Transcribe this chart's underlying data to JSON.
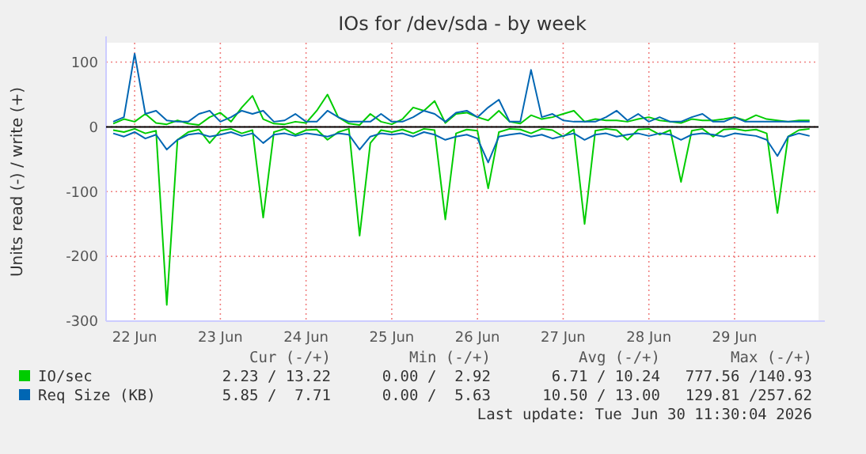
{
  "chart_data": {
    "type": "line",
    "title": "IOs for /dev/sda - by week",
    "ylabel": "Units read (-) / write (+)",
    "x": [
      "2026-06-22T06:00",
      "2026-06-22T09:00",
      "2026-06-22T12:00",
      "2026-06-22T15:00",
      "2026-06-22T18:00",
      "2026-06-22T21:00",
      "2026-06-23T00:00",
      "2026-06-23T03:00",
      "2026-06-23T06:00",
      "2026-06-23T09:00",
      "2026-06-23T12:00",
      "2026-06-23T15:00",
      "2026-06-23T18:00",
      "2026-06-23T21:00",
      "2026-06-24T00:00",
      "2026-06-24T03:00",
      "2026-06-24T06:00",
      "2026-06-24T09:00",
      "2026-06-24T12:00",
      "2026-06-24T15:00",
      "2026-06-24T18:00",
      "2026-06-24T21:00",
      "2026-06-25T00:00",
      "2026-06-25T03:00",
      "2026-06-25T06:00",
      "2026-06-25T09:00",
      "2026-06-25T12:00",
      "2026-06-25T15:00",
      "2026-06-25T18:00",
      "2026-06-25T21:00",
      "2026-06-26T00:00",
      "2026-06-26T03:00",
      "2026-06-26T06:00",
      "2026-06-26T09:00",
      "2026-06-26T12:00",
      "2026-06-26T15:00",
      "2026-06-26T18:00",
      "2026-06-26T21:00",
      "2026-06-27T00:00",
      "2026-06-27T03:00",
      "2026-06-27T06:00",
      "2026-06-27T09:00",
      "2026-06-27T12:00",
      "2026-06-27T15:00",
      "2026-06-27T18:00",
      "2026-06-27T21:00",
      "2026-06-28T00:00",
      "2026-06-28T03:00",
      "2026-06-28T06:00",
      "2026-06-28T09:00",
      "2026-06-28T12:00",
      "2026-06-28T15:00",
      "2026-06-28T18:00",
      "2026-06-28T21:00",
      "2026-06-29T00:00",
      "2026-06-29T03:00",
      "2026-06-29T06:00",
      "2026-06-29T09:00",
      "2026-06-29T12:00",
      "2026-06-29T15:00",
      "2026-06-29T18:00",
      "2026-06-29T21:00",
      "2026-06-30T00:00",
      "2026-06-30T03:00",
      "2026-06-30T06:00",
      "2026-06-30T09:00"
    ],
    "series": [
      {
        "color": "#00cc00",
        "values": [
          -5,
          -8,
          -3,
          -10,
          -6,
          -275,
          -20,
          -8,
          -4,
          -25,
          -6,
          -3,
          -10,
          -5,
          -140,
          -8,
          -3,
          -12,
          -5,
          -4,
          -20,
          -8,
          -3,
          -168,
          -25,
          -5,
          -8,
          -4,
          -10,
          -3,
          -5,
          -143,
          -10,
          -4,
          -6,
          -95,
          -8,
          -3,
          -4,
          -10,
          -3,
          -5,
          -15,
          -4,
          -150,
          -6,
          -3,
          -5,
          -20,
          -4,
          -3,
          -12,
          -5,
          -85,
          -6,
          -3,
          -15,
          -4,
          -3,
          -6,
          -4,
          -10,
          -133,
          -15,
          -5,
          -3
        ]
      },
      {
        "color": "#0066b3",
        "values": [
          -10,
          -15,
          -8,
          -18,
          -12,
          -35,
          -20,
          -12,
          -10,
          -15,
          -12,
          -8,
          -14,
          -10,
          -25,
          -12,
          -10,
          -14,
          -10,
          -12,
          -15,
          -10,
          -12,
          -35,
          -15,
          -10,
          -12,
          -10,
          -15,
          -8,
          -12,
          -20,
          -15,
          -12,
          -18,
          -55,
          -15,
          -12,
          -10,
          -15,
          -12,
          -18,
          -14,
          -10,
          -20,
          -12,
          -10,
          -15,
          -12,
          -10,
          -14,
          -10,
          -12,
          -20,
          -12,
          -10,
          -12,
          -15,
          -10,
          -12,
          -14,
          -20,
          -45,
          -15,
          -10,
          -14
        ]
      },
      {
        "name": "IO/sec",
        "color": "#00cc00",
        "values": [
          5,
          12,
          8,
          20,
          6,
          4,
          10,
          5,
          3,
          15,
          22,
          8,
          30,
          48,
          12,
          5,
          4,
          8,
          6,
          25,
          50,
          15,
          5,
          3,
          20,
          8,
          4,
          12,
          30,
          25,
          40,
          6,
          20,
          22,
          15,
          10,
          25,
          8,
          5,
          18,
          12,
          15,
          20,
          25,
          8,
          12,
          10,
          10,
          8,
          12,
          15,
          10,
          8,
          6,
          12,
          10,
          10,
          12,
          15,
          10,
          18,
          12,
          10,
          8,
          10,
          10
        ]
      },
      {
        "name": "Req Size (KB)",
        "color": "#0066b3",
        "values": [
          8,
          15,
          113,
          20,
          25,
          10,
          8,
          8,
          20,
          25,
          8,
          15,
          25,
          20,
          25,
          8,
          10,
          20,
          8,
          8,
          25,
          15,
          8,
          8,
          8,
          20,
          8,
          8,
          15,
          25,
          20,
          8,
          22,
          25,
          15,
          30,
          42,
          8,
          8,
          88,
          15,
          20,
          10,
          8,
          8,
          8,
          15,
          25,
          10,
          20,
          8,
          15,
          8,
          8,
          15,
          20,
          8,
          8,
          15,
          8,
          8,
          8,
          8,
          8,
          8,
          8
        ]
      }
    ],
    "xlim": [
      "2026-06-22T04:00",
      "2026-06-30T11:30"
    ],
    "xticks": [
      {
        "value": "2026-06-22T12:00",
        "label": "22 Jun"
      },
      {
        "value": "2026-06-23T12:00",
        "label": "23 Jun"
      },
      {
        "value": "2026-06-24T12:00",
        "label": "24 Jun"
      },
      {
        "value": "2026-06-25T12:00",
        "label": "25 Jun"
      },
      {
        "value": "2026-06-26T12:00",
        "label": "26 Jun"
      },
      {
        "value": "2026-06-27T12:00",
        "label": "27 Jun"
      },
      {
        "value": "2026-06-28T12:00",
        "label": "28 Jun"
      },
      {
        "value": "2026-06-29T12:00",
        "label": "29 Jun"
      }
    ],
    "ylim": [
      -300,
      130
    ],
    "yticks": [
      -300,
      -200,
      -100,
      0,
      100
    ],
    "grid": true,
    "legend": "bottom left",
    "ref_lines": [
      {
        "axis": "y",
        "value": 0,
        "color": "#000000"
      }
    ],
    "annotations": [
      "Cur (-/+)",
      "Min (-/+)",
      "Avg (-/+)",
      "Max (-/+)",
      "2.23 / 13.22",
      "0.00 /  2.92",
      "6.71 / 10.24",
      "777.56 /140.93",
      "5.85 /  7.71",
      "0.00 /  5.63",
      "10.50 / 13.00",
      "129.81 /257.62",
      "Last update: Tue Jun 30 11:30:04 2026"
    ]
  }
}
